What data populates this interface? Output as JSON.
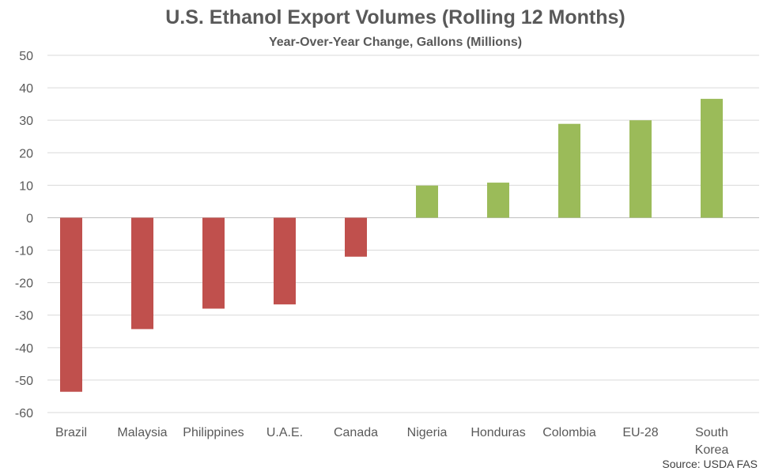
{
  "chart_data": {
    "type": "bar",
    "title": "U.S. Ethanol Export Volumes (Rolling 12 Months)",
    "subtitle": "Year-Over-Year Change, Gallons  (Millions)",
    "xlabel": "",
    "ylabel": "",
    "ylim": [
      -60,
      50
    ],
    "yticks": [
      50,
      40,
      30,
      20,
      10,
      0,
      -10,
      -20,
      -30,
      -40,
      -50,
      -60
    ],
    "grid": true,
    "categories": [
      "Brazil",
      "Malaysia",
      "Philippines",
      "U.A.E.",
      "Canada",
      "Nigeria",
      "Honduras",
      "Colombia",
      "EU-28",
      "South Korea"
    ],
    "values": [
      -53.6,
      -34.3,
      -28.0,
      -26.7,
      -12.0,
      9.9,
      10.8,
      28.9,
      30.0,
      36.6
    ],
    "colors": {
      "negative": "#C0504D",
      "positive": "#9BBB59",
      "grid": "#D9D9D9",
      "axis": "#BFBFBF"
    },
    "source": "Source: USDA FAS"
  }
}
